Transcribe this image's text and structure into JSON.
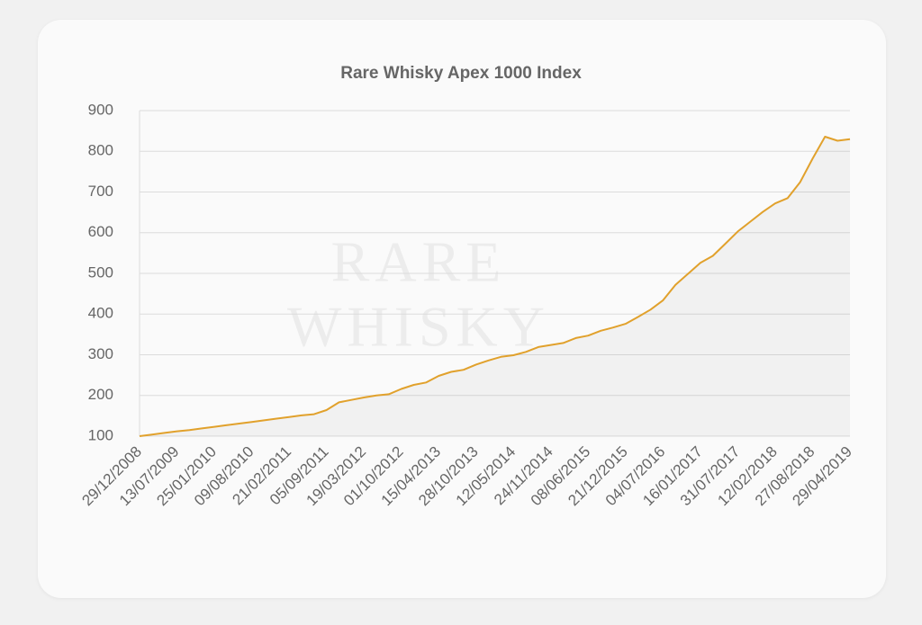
{
  "chart_data": {
    "type": "line",
    "title": "Rare Whisky Apex 1000 Index",
    "watermark": [
      "RARE",
      "WHISKY"
    ],
    "categories": [
      "29/12/2008",
      null,
      null,
      "13/07/2009",
      null,
      null,
      "25/01/2010",
      null,
      null,
      "09/08/2010",
      null,
      null,
      "21/02/2011",
      null,
      null,
      "05/09/2011",
      null,
      null,
      "19/03/2012",
      null,
      null,
      "01/10/2012",
      null,
      null,
      "15/04/2013",
      null,
      null,
      "28/10/2013",
      null,
      null,
      "12/05/2014",
      null,
      null,
      "24/11/2014",
      null,
      null,
      "08/06/2015",
      null,
      null,
      "21/12/2015",
      null,
      null,
      "04/07/2016",
      null,
      null,
      "16/01/2017",
      null,
      null,
      "31/07/2017",
      null,
      null,
      "12/02/2018",
      null,
      null,
      "27/08/2018",
      null,
      null,
      "29/04/2019"
    ],
    "values": [
      100,
      104,
      108,
      112,
      115,
      119,
      123,
      127,
      131,
      135,
      139,
      143,
      147,
      151,
      154,
      164,
      183,
      189,
      195,
      200,
      203,
      216,
      226,
      232,
      248,
      258,
      263,
      276,
      286,
      295,
      299,
      307,
      319,
      324,
      329,
      341,
      347,
      359,
      367,
      376,
      393,
      411,
      434,
      472,
      499,
      526,
      543,
      573,
      603,
      627,
      651,
      672,
      685,
      724,
      782,
      836,
      826,
      830
    ],
    "color": "#e1a12c",
    "ylim": [
      100,
      900
    ],
    "yticks": [
      100,
      200,
      300,
      400,
      500,
      600,
      700,
      800,
      900
    ],
    "grid": true
  }
}
